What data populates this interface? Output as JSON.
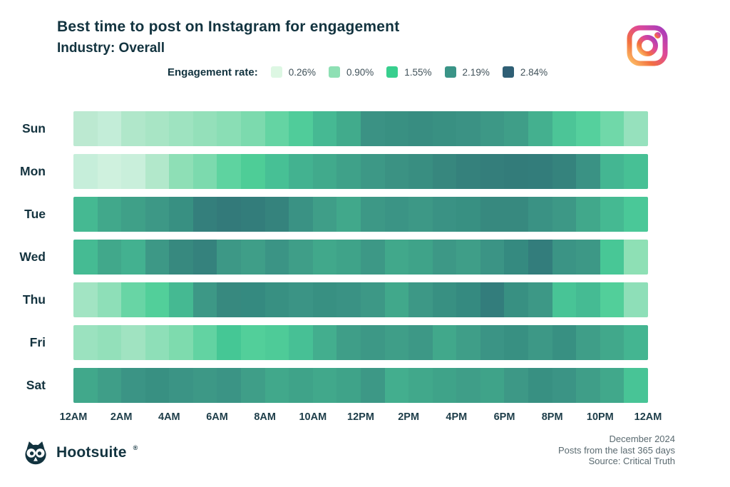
{
  "header": {
    "title": "Best time to post on Instagram for engagement",
    "subtitle": "Industry: Overall"
  },
  "legend": {
    "label": "Engagement rate:",
    "items": [
      {
        "value": "0.26%",
        "color": "#ddf7e3"
      },
      {
        "value": "0.90%",
        "color": "#8ee0b4"
      },
      {
        "value": "1.55%",
        "color": "#38cf8e"
      },
      {
        "value": "2.19%",
        "color": "#3a9487"
      },
      {
        "value": "2.84%",
        "color": "#2f5f75"
      }
    ]
  },
  "chart_data": {
    "type": "heatmap",
    "title": "Best time to post on Instagram for engagement",
    "subtitle": "Industry: Overall",
    "value_unit": "engagement rate %",
    "value_range": [
      0.26,
      2.84
    ],
    "legend_position": "top",
    "x_tick_labels": [
      "12AM",
      "2AM",
      "4AM",
      "6AM",
      "8AM",
      "10AM",
      "12PM",
      "2PM",
      "4PM",
      "6PM",
      "8PM",
      "10PM",
      "12AM"
    ],
    "hours": [
      "12AM",
      "1AM",
      "2AM",
      "3AM",
      "4AM",
      "5AM",
      "6AM",
      "7AM",
      "8AM",
      "9AM",
      "10AM",
      "11AM",
      "12PM",
      "1PM",
      "2PM",
      "3PM",
      "4PM",
      "5PM",
      "6PM",
      "7PM",
      "8PM",
      "9PM",
      "10PM",
      "11PM"
    ],
    "days": [
      "Sun",
      "Mon",
      "Tue",
      "Wed",
      "Thu",
      "Fri",
      "Sat"
    ],
    "rows": [
      {
        "day": "Sun",
        "values": [
          0.62,
          0.58,
          0.68,
          0.72,
          0.78,
          0.84,
          0.92,
          1.02,
          1.25,
          1.45,
          1.75,
          1.9,
          2.2,
          2.23,
          2.25,
          2.23,
          2.2,
          2.15,
          2.08,
          1.85,
          1.6,
          1.45,
          1.15,
          0.85
        ],
        "colors": [
          "#bce9d1",
          "#c3edd8",
          "#b0e7ca",
          "#a8e5c5",
          "#9ee3c0",
          "#94e0ba",
          "#8adeb5",
          "#7cdaae",
          "#64d4a3",
          "#50cc9a",
          "#46b993",
          "#41ab8c",
          "#3b9284",
          "#399082",
          "#388d81",
          "#399082",
          "#3b9284",
          "#3d9886",
          "#3f9e88",
          "#44b08f",
          "#4cc597",
          "#55d09d",
          "#70d8a9",
          "#96e1bd"
        ]
      },
      {
        "day": "Mon",
        "values": [
          0.54,
          0.5,
          0.52,
          0.66,
          0.92,
          1.02,
          1.28,
          1.45,
          1.62,
          1.78,
          1.9,
          2.0,
          2.12,
          2.2,
          2.25,
          2.32,
          2.4,
          2.43,
          2.46,
          2.45,
          2.38,
          2.22,
          1.78,
          1.62
        ],
        "colors": [
          "#c6eeda",
          "#cff1de",
          "#c9efdb",
          "#b2e8cb",
          "#8edfb6",
          "#7cdaae",
          "#5ed3a0",
          "#4ecd97",
          "#47c095",
          "#43b290",
          "#41aa8c",
          "#3fa189",
          "#3d9886",
          "#3b9283",
          "#398e81",
          "#37877e",
          "#35817c",
          "#347e7b",
          "#337c7a",
          "#337d7b",
          "#35837d",
          "#3a9284",
          "#44b692",
          "#47c095"
        ]
      },
      {
        "day": "Tue",
        "values": [
          1.73,
          1.95,
          2.05,
          2.12,
          2.26,
          2.42,
          2.48,
          2.45,
          2.38,
          2.22,
          2.08,
          1.95,
          2.12,
          2.18,
          2.12,
          2.22,
          2.26,
          2.32,
          2.32,
          2.22,
          2.12,
          1.95,
          1.73,
          1.55
        ],
        "colors": [
          "#45b992",
          "#41a88b",
          "#3fa088",
          "#3d9886",
          "#389082",
          "#347f7c",
          "#337a7a",
          "#337d7b",
          "#35837d",
          "#3a9284",
          "#3f9e88",
          "#41a88b",
          "#3d9886",
          "#3b9485",
          "#3d9886",
          "#3a9284",
          "#389082",
          "#37897f",
          "#37897f",
          "#3a9284",
          "#3d9886",
          "#41a88b",
          "#45b992",
          "#4ac898"
        ]
      },
      {
        "day": "Wed",
        "values": [
          1.7,
          1.95,
          1.82,
          2.12,
          2.32,
          2.4,
          2.12,
          2.08,
          2.18,
          2.08,
          1.95,
          2.02,
          2.12,
          1.95,
          2.02,
          2.12,
          2.08,
          2.18,
          2.36,
          2.45,
          2.18,
          2.12,
          1.58,
          0.92
        ],
        "colors": [
          "#45bb93",
          "#41a88b",
          "#43b190",
          "#3d9886",
          "#37897f",
          "#35827d",
          "#3d9886",
          "#3f9e88",
          "#3b9485",
          "#3f9e88",
          "#41a88b",
          "#3fa389",
          "#3d9886",
          "#41a88b",
          "#3fa389",
          "#3d9886",
          "#3f9e88",
          "#3b9485",
          "#358a80",
          "#337d7c",
          "#3b9485",
          "#3d9886",
          "#48c796",
          "#8ee0b5"
        ]
      },
      {
        "day": "Thu",
        "values": [
          0.78,
          0.92,
          1.2,
          1.42,
          1.73,
          2.12,
          2.32,
          2.35,
          2.26,
          2.18,
          2.26,
          2.22,
          2.12,
          1.95,
          2.12,
          2.26,
          2.35,
          2.45,
          2.26,
          2.12,
          1.62,
          1.7,
          1.42,
          0.92
        ],
        "colors": [
          "#a2e4c3",
          "#8edfb8",
          "#68d5a5",
          "#52cf9a",
          "#45b992",
          "#3d9886",
          "#37897f",
          "#358a80",
          "#389082",
          "#3b9485",
          "#389082",
          "#3a9284",
          "#3d9886",
          "#41a88b",
          "#3d9886",
          "#389082",
          "#358a80",
          "#337d7c",
          "#389082",
          "#3d9886",
          "#48c496",
          "#45bb93",
          "#52cf9a",
          "#8edfb8"
        ]
      },
      {
        "day": "Fri",
        "values": [
          0.83,
          0.9,
          0.8,
          0.92,
          1.02,
          1.25,
          1.58,
          1.42,
          1.48,
          1.62,
          1.86,
          2.08,
          2.12,
          2.08,
          2.12,
          1.95,
          2.08,
          2.18,
          2.26,
          2.12,
          2.26,
          2.08,
          1.95,
          1.78
        ],
        "colors": [
          "#9be2bf",
          "#93e0ba",
          "#a0e3c1",
          "#8edfb8",
          "#7edbae",
          "#62d3a2",
          "#45c795",
          "#52cf9a",
          "#4ecb98",
          "#47c095",
          "#43ae8e",
          "#3f9e88",
          "#3d9886",
          "#3f9e88",
          "#3d9886",
          "#41a88b",
          "#3f9e88",
          "#3b9485",
          "#389082",
          "#3d9886",
          "#389082",
          "#3f9e88",
          "#41a88b",
          "#44b591"
        ]
      },
      {
        "day": "Sat",
        "values": [
          1.95,
          2.08,
          2.18,
          2.26,
          2.18,
          2.12,
          2.18,
          2.08,
          1.95,
          2.02,
          1.95,
          2.02,
          2.12,
          1.86,
          1.95,
          2.02,
          2.08,
          2.02,
          2.12,
          2.26,
          2.18,
          2.08,
          1.95,
          1.62
        ],
        "colors": [
          "#41a88b",
          "#3f9e88",
          "#3b9485",
          "#389082",
          "#3b9485",
          "#3d9886",
          "#3b9485",
          "#3f9e88",
          "#41a88b",
          "#3fa389",
          "#41a88b",
          "#3fa389",
          "#3d9886",
          "#43ae8e",
          "#41a88b",
          "#3fa389",
          "#3f9e88",
          "#3fa389",
          "#3d9886",
          "#389082",
          "#3b9485",
          "#3f9e88",
          "#41a88b",
          "#48c496"
        ]
      }
    ]
  },
  "footer": {
    "brand": "Hootsuite",
    "registered": "®",
    "meta": [
      "December 2024",
      "Posts from the last 365 days",
      "Source: Critical Truth"
    ]
  },
  "icons": {
    "top_right": "instagram-camera-icon",
    "bottom_left": "hootsuite-owl-icon"
  },
  "colors": {
    "background": "#ffffff",
    "title_text": "#12333f",
    "day_label_text": "#14333f",
    "tick_label_text": "#1d3d49",
    "meta_text": "#5a6a70"
  }
}
